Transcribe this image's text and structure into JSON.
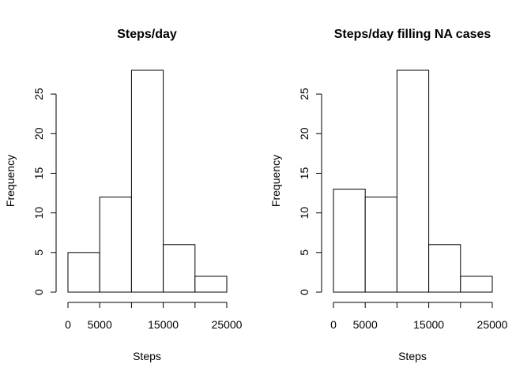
{
  "chart_data": [
    {
      "type": "bar",
      "title": "Steps/day",
      "xlabel": "Steps",
      "ylabel": "Frequency",
      "bins": [
        [
          0,
          5000
        ],
        [
          5000,
          10000
        ],
        [
          10000,
          15000
        ],
        [
          15000,
          20000
        ],
        [
          20000,
          25000
        ]
      ],
      "values": [
        5,
        12,
        28,
        6,
        2
      ],
      "xlim": [
        0,
        25000
      ],
      "ylim": [
        0,
        28
      ],
      "xticks": [
        0,
        5000,
        10000,
        15000,
        20000,
        25000
      ],
      "xtick_labels": [
        "0",
        "5000",
        "",
        "15000",
        "",
        "25000"
      ],
      "yticks": [
        0,
        5,
        10,
        15,
        20,
        25
      ],
      "ytick_labels": [
        "0",
        "5",
        "10",
        "15",
        "20",
        "25"
      ],
      "grid": false
    },
    {
      "type": "bar",
      "title": "Steps/day filling NA cases",
      "xlabel": "Steps",
      "ylabel": "Frequency",
      "bins": [
        [
          0,
          5000
        ],
        [
          5000,
          10000
        ],
        [
          10000,
          15000
        ],
        [
          15000,
          20000
        ],
        [
          20000,
          25000
        ]
      ],
      "values": [
        13,
        12,
        28,
        6,
        2
      ],
      "xlim": [
        0,
        25000
      ],
      "ylim": [
        0,
        28
      ],
      "xticks": [
        0,
        5000,
        10000,
        15000,
        20000,
        25000
      ],
      "xtick_labels": [
        "0",
        "5000",
        "",
        "15000",
        "",
        "25000"
      ],
      "yticks": [
        0,
        5,
        10,
        15,
        20,
        25
      ],
      "ytick_labels": [
        "0",
        "5",
        "10",
        "15",
        "20",
        "25"
      ],
      "grid": false
    }
  ]
}
